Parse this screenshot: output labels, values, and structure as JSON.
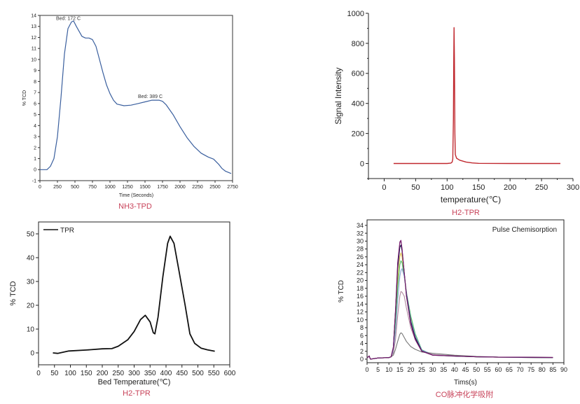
{
  "captions": [
    "NH3-TPD",
    "H2-TPR",
    "H2-TPR",
    "CO脉冲化学吸附"
  ],
  "chart_data": [
    {
      "type": "line",
      "title": "",
      "xlabel": "Time (Seconds)",
      "ylabel": "% TCD",
      "xlim": [
        0,
        2750
      ],
      "ylim": [
        -1,
        14
      ],
      "xticks": [
        "0",
        "250",
        "500",
        "750",
        "1000",
        "1250",
        "1500",
        "1750",
        "2000",
        "2250",
        "2500",
        "2750"
      ],
      "yticks": [
        "-1",
        "0",
        "1",
        "2",
        "3",
        "4",
        "5",
        "6",
        "7",
        "8",
        "9",
        "10",
        "11",
        "12",
        "13",
        "14"
      ],
      "grid": false,
      "annotations": [
        {
          "text": "Bed: 172 C",
          "x": 430,
          "y": 13.4
        },
        {
          "text": "Bed: 389 C",
          "x": 1600,
          "y": 6.3
        }
      ],
      "series": [
        {
          "color": "#3a5f9e",
          "x": [
            0,
            100,
            150,
            200,
            250,
            300,
            350,
            400,
            450,
            480,
            520,
            600,
            650,
            700,
            750,
            800,
            850,
            900,
            950,
            1000,
            1050,
            1100,
            1200,
            1300,
            1400,
            1500,
            1600,
            1700,
            1750,
            1800,
            1900,
            2000,
            2100,
            2200,
            2300,
            2400,
            2480,
            2550,
            2600,
            2650,
            2730
          ],
          "y": [
            0,
            0,
            0.3,
            1,
            3,
            6.5,
            10.5,
            12.8,
            13.4,
            13.5,
            13,
            12.1,
            11.95,
            11.95,
            11.8,
            11.2,
            10,
            8.8,
            7.7,
            6.9,
            6.3,
            5.95,
            5.8,
            5.85,
            6.0,
            6.15,
            6.3,
            6.3,
            6.2,
            5.9,
            5,
            3.9,
            2.9,
            2.1,
            1.5,
            1.15,
            0.95,
            0.5,
            0.1,
            -0.15,
            -0.35
          ]
        }
      ]
    },
    {
      "type": "line",
      "title": "",
      "xlabel": "temperature(℃)",
      "ylabel": "Signal Intensity",
      "xlim": [
        -25,
        300
      ],
      "ylim": [
        -100,
        1000
      ],
      "xticks": [
        "0",
        "50",
        "100",
        "150",
        "200",
        "250",
        "300"
      ],
      "yticks": [
        "0",
        "200",
        "400",
        "600",
        "800",
        "1000"
      ],
      "grid": false,
      "series": [
        {
          "color": "#c0282e",
          "x": [
            15,
            100,
            106,
            108,
            109,
            110,
            110.6,
            111,
            111.6,
            112.3,
            113,
            115,
            120,
            130,
            140,
            150,
            200,
            280
          ],
          "y": [
            0,
            0,
            3,
            10,
            30,
            300,
            700,
            905,
            700,
            200,
            60,
            35,
            22,
            10,
            4,
            1,
            0,
            0
          ]
        }
      ]
    },
    {
      "type": "line",
      "title": "",
      "xlabel": "Bed Temperature(℃)",
      "ylabel": "% TCD",
      "xlim": [
        0,
        600
      ],
      "ylim": [
        -5,
        55
      ],
      "xticks": [
        "0",
        "50",
        "100",
        "150",
        "200",
        "250",
        "300",
        "350",
        "400",
        "450",
        "500",
        "550",
        "600"
      ],
      "yticks": [
        "0",
        "10",
        "20",
        "30",
        "40",
        "50"
      ],
      "grid": false,
      "legend": "top-left",
      "series": [
        {
          "name": "TPR",
          "color": "#111111",
          "x": [
            45,
            60,
            95,
            150,
            200,
            230,
            250,
            280,
            300,
            320,
            335,
            350,
            360,
            365,
            375,
            390,
            405,
            413,
            425,
            440,
            460,
            475,
            490,
            510,
            530,
            553
          ],
          "y": [
            0,
            -0.2,
            0.8,
            1.2,
            1.7,
            1.8,
            2.8,
            5.5,
            9,
            14,
            15.8,
            13,
            8.5,
            8,
            15,
            32,
            46,
            49,
            46,
            35,
            20,
            8,
            4,
            2,
            1.3,
            0.7
          ]
        }
      ]
    },
    {
      "type": "line",
      "title": "Pulse Chemisorption",
      "xlabel": "Tims(s)",
      "ylabel": "% TCD",
      "xlim": [
        0,
        90
      ],
      "ylim": [
        -0.9,
        35.4
      ],
      "xticks": [
        "0",
        "5",
        "10",
        "15",
        "20",
        "25",
        "30",
        "35",
        "40",
        "45",
        "50",
        "55",
        "60",
        "65",
        "70",
        "75",
        "80",
        "85",
        "90"
      ],
      "yticks": [
        "0",
        "2",
        "4",
        "6",
        "8",
        "10",
        "12",
        "14",
        "16",
        "18",
        "20",
        "22",
        "24",
        "26",
        "28",
        "30",
        "32",
        "34"
      ],
      "grid": false,
      "x": [
        0,
        1,
        1.5,
        5,
        10,
        11,
        12,
        13,
        14,
        15,
        15.5,
        16,
        17,
        18,
        20,
        22,
        25,
        30,
        40,
        50,
        60,
        70,
        85
      ],
      "series": [
        {
          "color": "#8a6a8e",
          "y": [
            0.3,
            0.8,
            0,
            0.3,
            0.4,
            0.6,
            3,
            12,
            24,
            29.5,
            30,
            28,
            22,
            16,
            9,
            5,
            2,
            1.1,
            0.8,
            0.6,
            0.5,
            0.45,
            0.4
          ]
        },
        {
          "color": "#e0c050",
          "y": [
            0.3,
            0.8,
            0,
            0.3,
            0.4,
            0.6,
            2.5,
            10,
            20,
            26,
            27,
            26,
            21.5,
            17,
            10.5,
            6,
            2.3,
            1.1,
            0.8,
            0.6,
            0.5,
            0.45,
            0.4
          ]
        },
        {
          "color": "#4fbf6a",
          "y": [
            0.3,
            0.8,
            0,
            0.3,
            0.4,
            0.6,
            2.5,
            9,
            18,
            24,
            25,
            24.5,
            21,
            17,
            11,
            6.5,
            2.4,
            1.1,
            0.8,
            0.6,
            0.5,
            0.45,
            0.4
          ]
        },
        {
          "color": "#8aa6d0",
          "y": [
            0.3,
            0.8,
            0,
            0.3,
            0.4,
            0.6,
            2,
            7,
            15,
            21,
            22.5,
            23,
            21,
            17,
            10,
            6,
            2.3,
            1.2,
            0.8,
            0.6,
            0.5,
            0.45,
            0.4
          ]
        },
        {
          "color": "#b08aa0",
          "y": [
            0.3,
            0.8,
            0,
            0.3,
            0.4,
            0.6,
            1.5,
            5,
            11,
            16,
            17.2,
            17,
            16,
            13,
            8,
            5,
            2,
            1.2,
            0.8,
            0.6,
            0.5,
            0.45,
            0.4
          ]
        },
        {
          "color": "#777777",
          "y": [
            0.3,
            0.8,
            0,
            0.3,
            0.4,
            0.6,
            1,
            2.5,
            4.5,
            6.3,
            6.7,
            6.5,
            5.5,
            4.5,
            3.2,
            2.5,
            1.8,
            1.5,
            1.0,
            0.7,
            0.55,
            0.5,
            0.45
          ]
        },
        {
          "color": "#111144",
          "y": [
            0.3,
            0.8,
            0,
            0.3,
            0.4,
            0.6,
            3,
            12,
            23,
            28.5,
            29,
            27.5,
            22,
            16.5,
            9.5,
            5.5,
            2.1,
            1.0,
            0.75,
            0.6,
            0.5,
            0.45,
            0.4
          ]
        },
        {
          "color": "#7a1a6e",
          "y": [
            0.3,
            0.8,
            0,
            0.3,
            0.4,
            0.6,
            3,
            12.5,
            24.5,
            29.8,
            30.2,
            28,
            22,
            16,
            9,
            5,
            2,
            1.0,
            0.8,
            0.6,
            0.5,
            0.5,
            0.45
          ]
        }
      ]
    }
  ]
}
